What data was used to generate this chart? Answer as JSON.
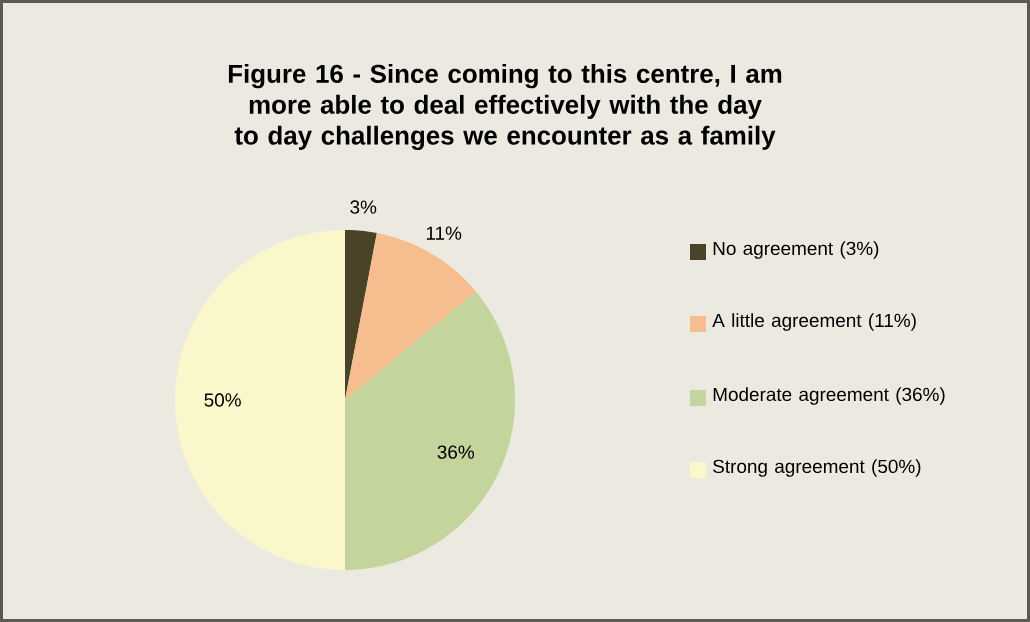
{
  "chart_data": {
    "type": "pie",
    "title": "Figure 16 - Since coming to this centre, I am more able to deal effectively with the day to day challenges we encounter as a family",
    "categories": [
      "No agreement (3%)",
      "A little agreement (11%)",
      "Moderate agreement (36%)",
      "Strong agreement (50%)"
    ],
    "values": [
      3,
      11,
      36,
      50
    ],
    "colors": [
      "#4a4328",
      "#f6be8e",
      "#c3d59c",
      "#faf8ca"
    ],
    "value_labels": [
      "3%",
      "11%",
      "36%",
      "50%"
    ],
    "legend": "right"
  }
}
